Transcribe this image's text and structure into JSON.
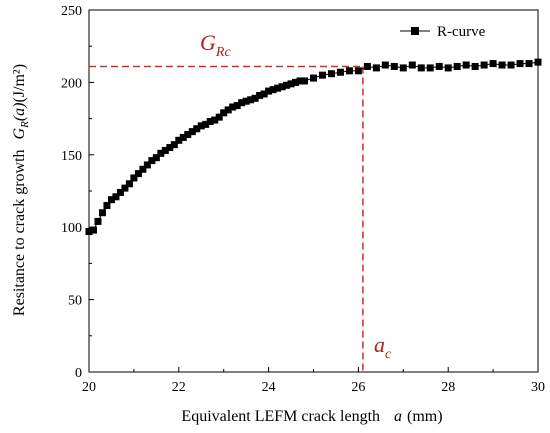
{
  "chart_data": {
    "type": "scatter",
    "xlabel_prefix": "Equivalent LEFM crack length",
    "xlabel_var": "a",
    "xlabel_unit": "(mm)",
    "ylabel_prefix": "Resitance to crack growth",
    "ylabel_sym": "G",
    "ylabel_sub": "R",
    "ylabel_arg": "(a)",
    "ylabel_unit": "(J/m²)",
    "xlim": [
      20,
      30
    ],
    "ylim": [
      0,
      250
    ],
    "xticks": [
      "20",
      "22",
      "24",
      "26",
      "28",
      "30"
    ],
    "yticks": [
      "0",
      "50",
      "100",
      "150",
      "200",
      "250"
    ],
    "legend_position": "top-right",
    "series": [
      {
        "name": "R-curve",
        "marker": "square",
        "color": "#000000",
        "x": [
          20.0,
          20.1,
          20.2,
          20.3,
          20.4,
          20.5,
          20.6,
          20.7,
          20.8,
          20.9,
          21.0,
          21.1,
          21.2,
          21.3,
          21.4,
          21.5,
          21.6,
          21.7,
          21.8,
          21.9,
          22.0,
          22.1,
          22.2,
          22.3,
          22.4,
          22.5,
          22.6,
          22.7,
          22.8,
          22.9,
          23.0,
          23.1,
          23.2,
          23.3,
          23.4,
          23.5,
          23.6,
          23.7,
          23.8,
          23.9,
          24.0,
          24.1,
          24.2,
          24.3,
          24.4,
          24.5,
          24.6,
          24.7,
          24.8,
          25.0,
          25.2,
          25.4,
          25.6,
          25.8,
          26.0,
          26.2,
          26.4,
          26.6,
          26.8,
          27.0,
          27.2,
          27.4,
          27.6,
          27.8,
          28.0,
          28.2,
          28.4,
          28.6,
          28.8,
          29.0,
          29.2,
          29.4,
          29.6,
          29.8,
          30.0
        ],
        "y": [
          97,
          98,
          104,
          110,
          115,
          119,
          121,
          124,
          127,
          130,
          134,
          137,
          140,
          143,
          146,
          148,
          151,
          153,
          155,
          157,
          160,
          162,
          164,
          166,
          168,
          170,
          171,
          173,
          174,
          176,
          179,
          181,
          183,
          184,
          186,
          187,
          188,
          189,
          191,
          192,
          194,
          195,
          196,
          197,
          198,
          199,
          200,
          201,
          201,
          203,
          205,
          206,
          207,
          208,
          208,
          211,
          210,
          212,
          211,
          210,
          212,
          210,
          210,
          211,
          210,
          211,
          212,
          211,
          212,
          213,
          212,
          212,
          213,
          213,
          214
        ]
      }
    ],
    "annotations": {
      "g_label": "G",
      "g_sub": "Rc",
      "g_value": 211,
      "a_label": "a",
      "a_sub": "c",
      "a_value": 26.1,
      "line_color": "#d42a2a"
    }
  }
}
